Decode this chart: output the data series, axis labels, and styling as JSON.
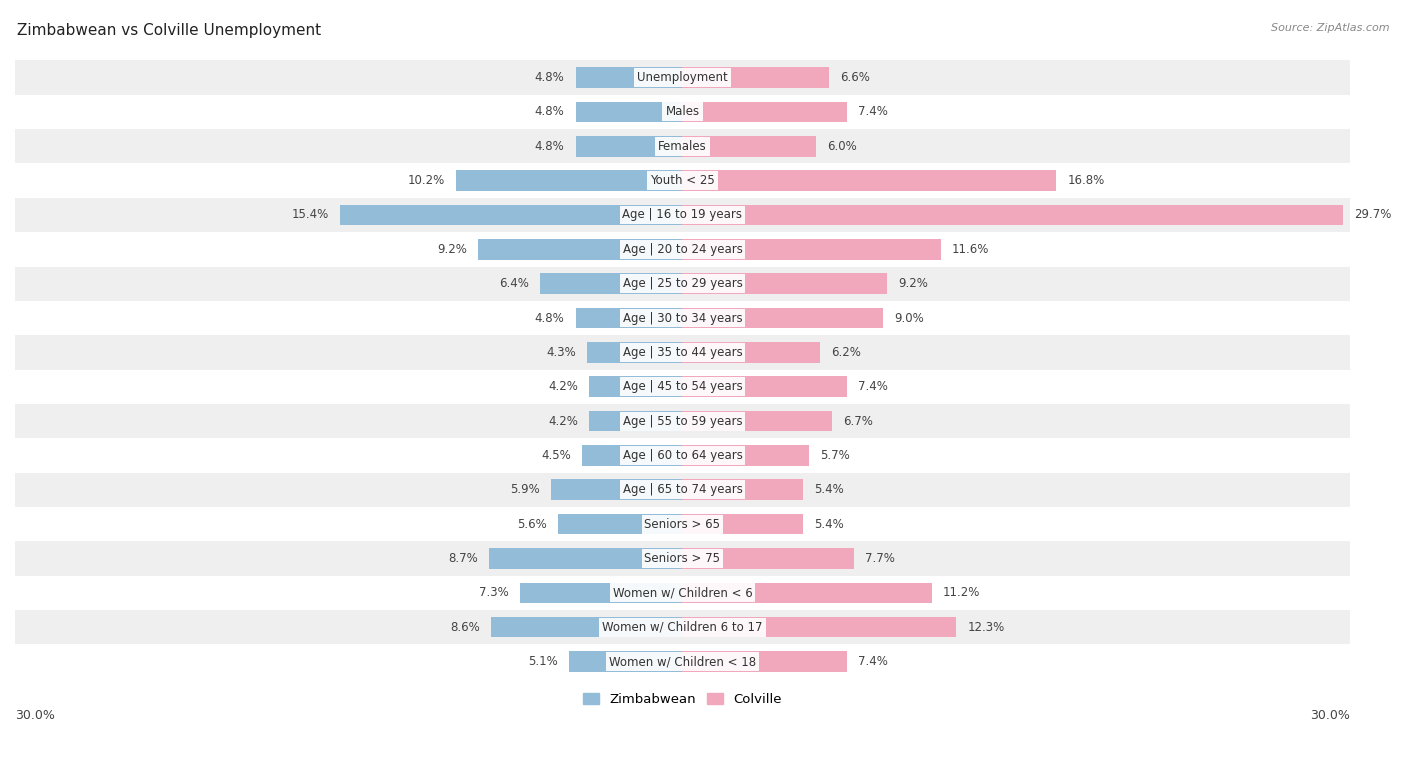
{
  "title": "Zimbabwean vs Colville Unemployment",
  "source": "Source: ZipAtlas.com",
  "categories": [
    "Unemployment",
    "Males",
    "Females",
    "Youth < 25",
    "Age | 16 to 19 years",
    "Age | 20 to 24 years",
    "Age | 25 to 29 years",
    "Age | 30 to 34 years",
    "Age | 35 to 44 years",
    "Age | 45 to 54 years",
    "Age | 55 to 59 years",
    "Age | 60 to 64 years",
    "Age | 65 to 74 years",
    "Seniors > 65",
    "Seniors > 75",
    "Women w/ Children < 6",
    "Women w/ Children 6 to 17",
    "Women w/ Children < 18"
  ],
  "zimbabwean": [
    4.8,
    4.8,
    4.8,
    10.2,
    15.4,
    9.2,
    6.4,
    4.8,
    4.3,
    4.2,
    4.2,
    4.5,
    5.9,
    5.6,
    8.7,
    7.3,
    8.6,
    5.1
  ],
  "colville": [
    6.6,
    7.4,
    6.0,
    16.8,
    29.7,
    11.6,
    9.2,
    9.0,
    6.2,
    7.4,
    6.7,
    5.7,
    5.4,
    5.4,
    7.7,
    11.2,
    12.3,
    7.4
  ],
  "zimbabwean_color": "#92bcd8",
  "colville_color": "#f2a8bc",
  "row_color_odd": "#efefef",
  "row_color_even": "#ffffff",
  "xlim": 30.0,
  "legend_zimbabwean": "Zimbabwean",
  "legend_colville": "Colville",
  "bar_height": 0.6,
  "label_fontsize": 8.5,
  "val_fontsize": 8.5,
  "title_fontsize": 11,
  "source_fontsize": 8
}
